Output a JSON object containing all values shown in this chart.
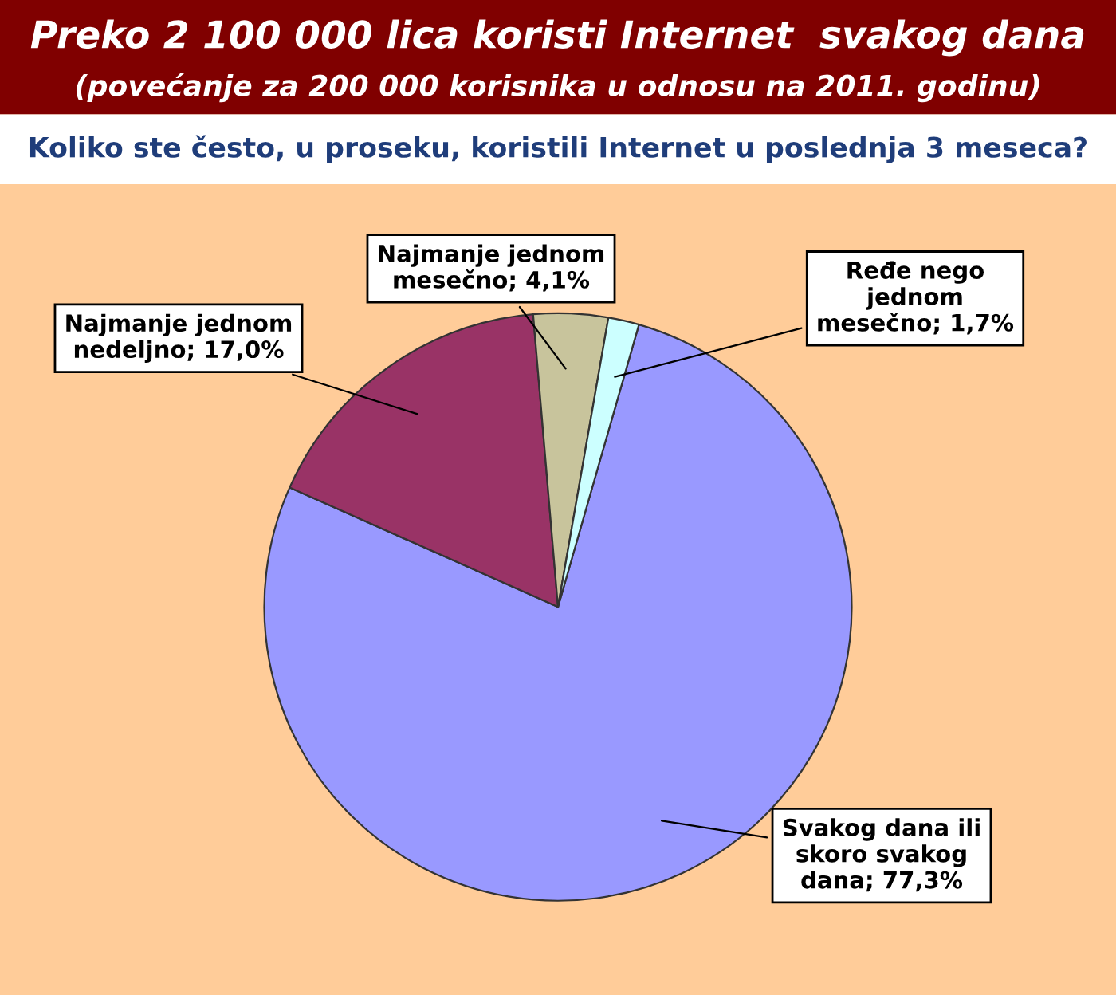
{
  "chart_data": {
    "type": "pie",
    "title": "Preko 2 100 000 lica koristi Internet  svakog dana",
    "subtitle": "(povećanje za 200 000 korisnika u odnosu na 2011. godinu)",
    "annotations": [
      "Koliko ste često, u proseku, koristili Internet u poslednja 3 meseca?"
    ],
    "categories": [
      "Svakog dana ili\nskoro svakog\ndana",
      "Najmanje jednom\nnedeljno",
      "Najmanje jednom\nmesečno",
      "Ređe nego\njednom\nmesečno"
    ],
    "values": [
      77.3,
      17.0,
      4.1,
      1.7
    ],
    "value_labels": [
      "77,3%",
      "17,0%",
      "4,1%",
      "1,7%"
    ],
    "colors": [
      "#9999ff",
      "#993366",
      "#c8c49c",
      "#ccffff"
    ]
  }
}
